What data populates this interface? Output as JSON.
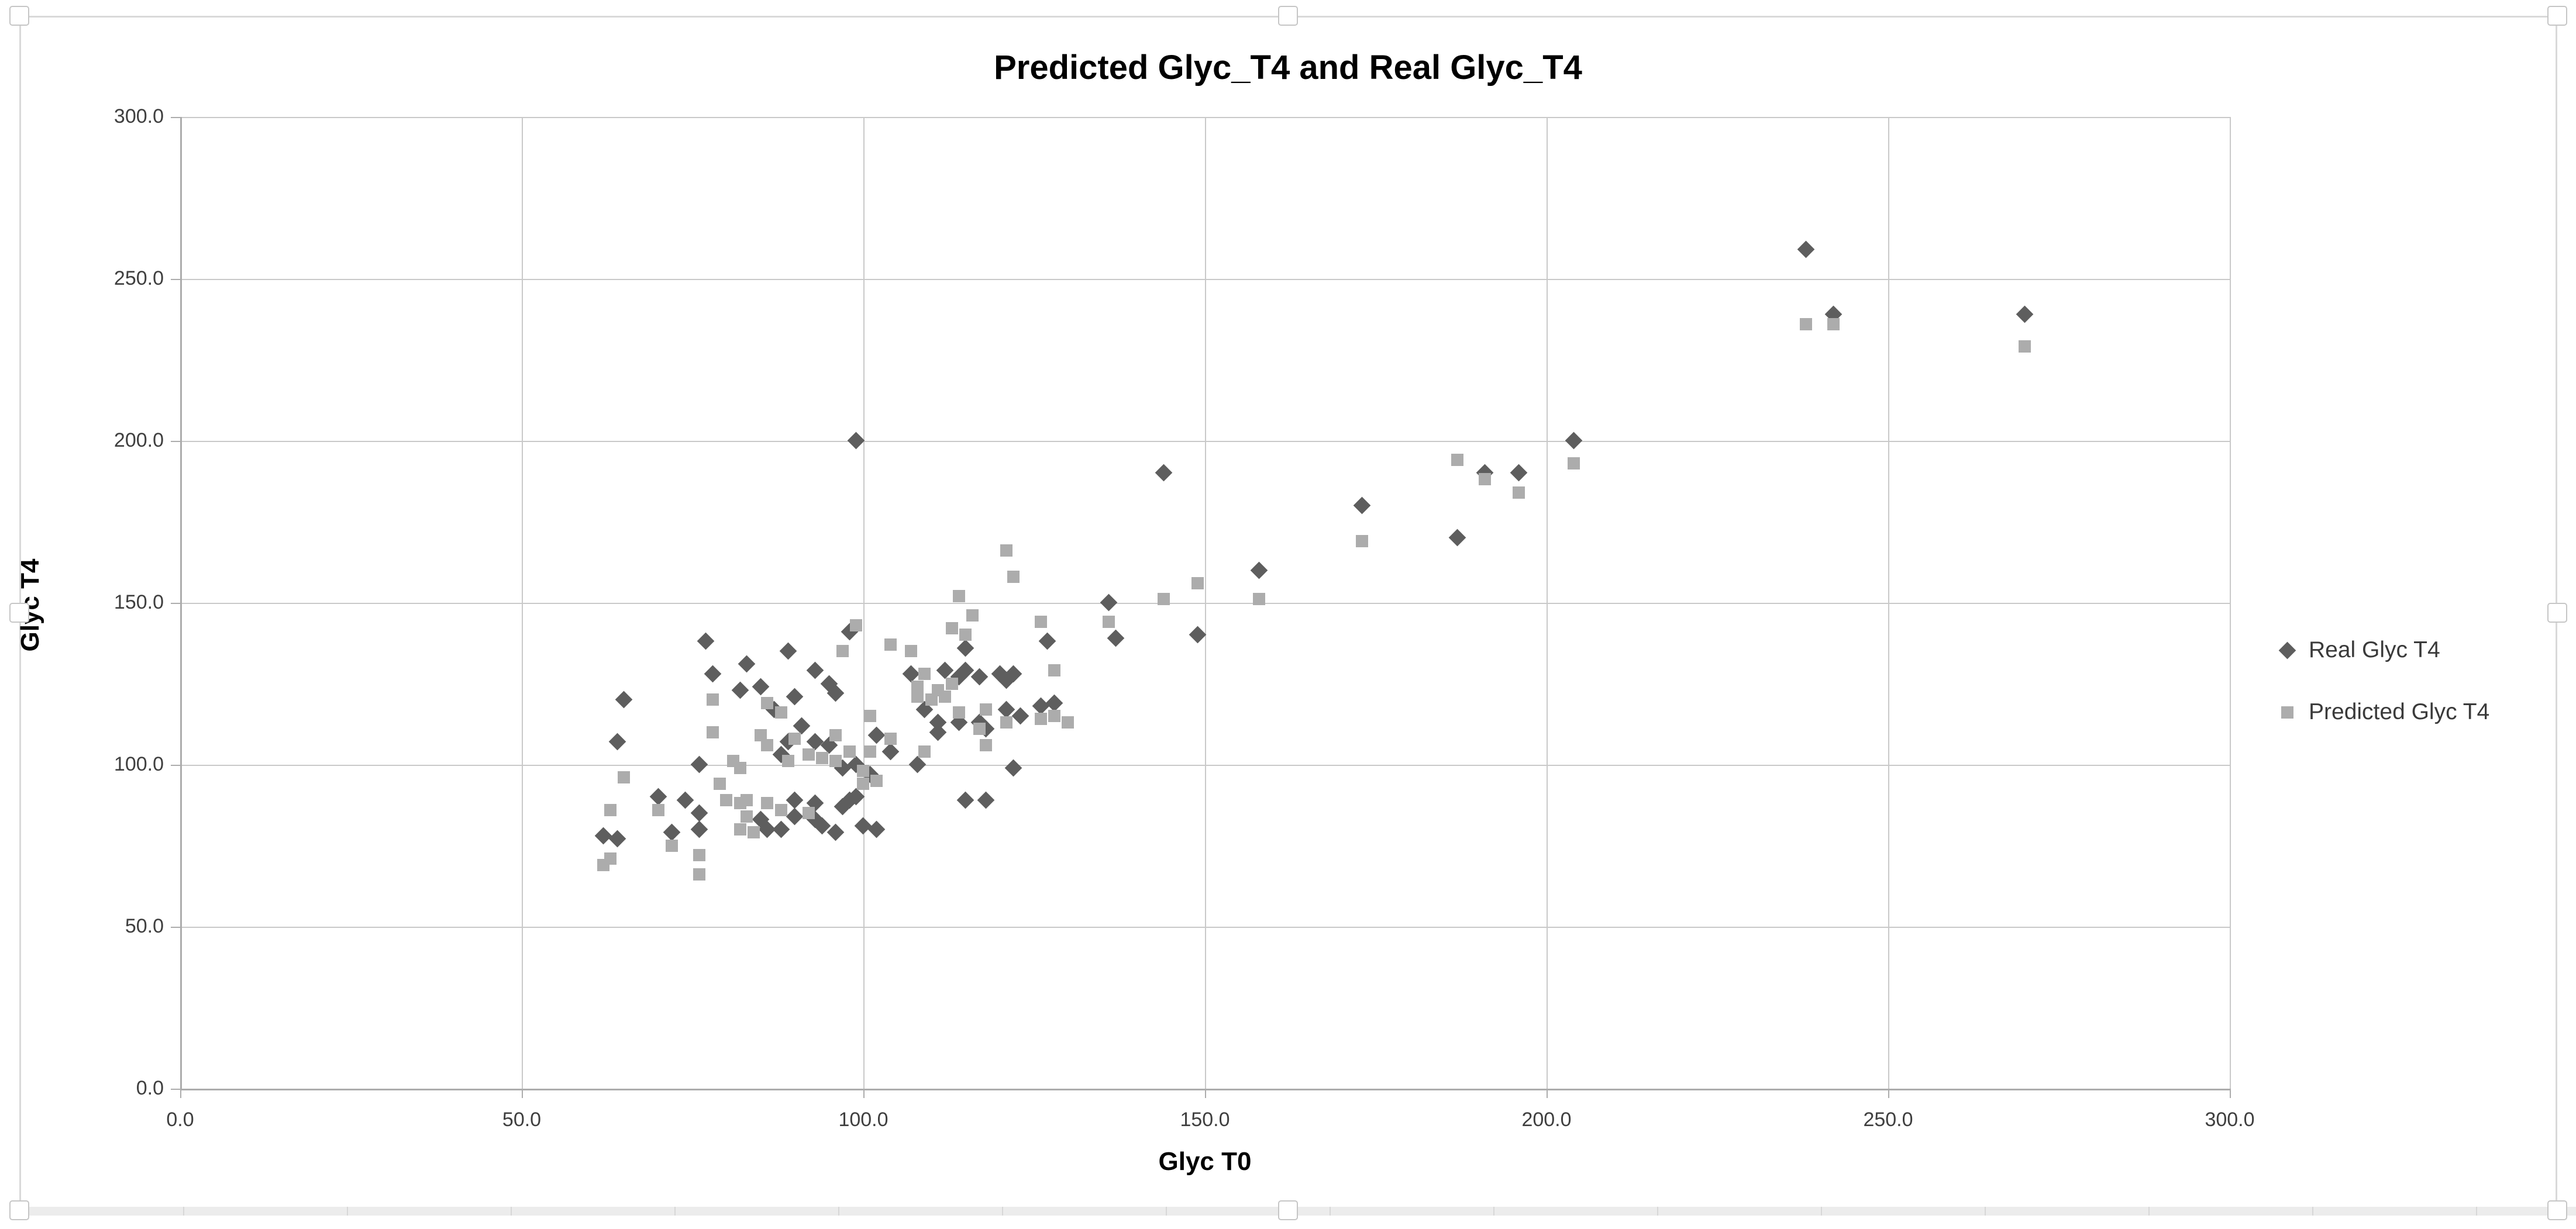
{
  "title": "Predicted Glyc_T4 and Real Glyc_T4",
  "axes": {
    "x": {
      "title": "Glyc T0",
      "tick_values": [
        0,
        50,
        100,
        150,
        200,
        250,
        300
      ],
      "tick_labels": [
        "0.0",
        "50.0",
        "100.0",
        "150.0",
        "200.0",
        "250.0",
        "300.0"
      ],
      "min": 0,
      "max": 300
    },
    "y": {
      "title": "Glyc T4",
      "tick_values": [
        0,
        50,
        100,
        150,
        200,
        250,
        300
      ],
      "tick_labels": [
        "0.0",
        "50.0",
        "100.0",
        "150.0",
        "200.0",
        "250.0",
        "300.0"
      ],
      "min": 0,
      "max": 300
    }
  },
  "legend": {
    "items": [
      {
        "label": "Real Glyc T4",
        "marker": "diamond",
        "color": "#5E5E5E"
      },
      {
        "label": "Predicted Glyc T4",
        "marker": "square",
        "color": "#ACACAC"
      }
    ]
  },
  "colors": {
    "gridline": "#C9C9C9",
    "axis": "#ACACAC",
    "real_series": "#5E5E5E",
    "predicted_series": "#ACACAC",
    "title_text": "#000000",
    "tick_text": "#3F3F3F"
  },
  "chart_data": {
    "type": "scatter",
    "title": "Predicted Glyc_T4 and Real Glyc_T4",
    "xlabel": "Glyc T0",
    "ylabel": "Glyc T4",
    "xlim": [
      0,
      300
    ],
    "ylim": [
      0,
      300
    ],
    "grid": true,
    "legend_position": "right",
    "series": [
      {
        "name": "Real Glyc T4",
        "marker": "diamond",
        "color": "#5E5E5E",
        "points": [
          [
            62,
            78
          ],
          [
            64,
            77
          ],
          [
            64,
            107
          ],
          [
            65,
            120
          ],
          [
            70,
            90
          ],
          [
            72,
            79
          ],
          [
            74,
            89
          ],
          [
            76,
            80
          ],
          [
            76,
            85
          ],
          [
            76,
            100
          ],
          [
            77,
            138
          ],
          [
            78,
            128
          ],
          [
            82,
            123
          ],
          [
            83,
            131
          ],
          [
            85,
            83
          ],
          [
            85,
            124
          ],
          [
            86,
            80
          ],
          [
            87,
            117
          ],
          [
            88,
            80
          ],
          [
            88,
            103
          ],
          [
            89,
            107
          ],
          [
            89,
            135
          ],
          [
            90,
            84
          ],
          [
            90,
            89
          ],
          [
            90,
            121
          ],
          [
            91,
            112
          ],
          [
            93,
            83
          ],
          [
            93,
            88
          ],
          [
            93,
            107
          ],
          [
            93,
            129
          ],
          [
            94,
            81
          ],
          [
            95,
            106
          ],
          [
            95,
            125
          ],
          [
            96,
            79
          ],
          [
            96,
            122
          ],
          [
            97,
            87
          ],
          [
            97,
            99
          ],
          [
            98,
            89
          ],
          [
            98,
            141
          ],
          [
            99,
            90
          ],
          [
            99,
            100
          ],
          [
            99,
            200
          ],
          [
            100,
            81
          ],
          [
            101,
            97
          ],
          [
            102,
            80
          ],
          [
            102,
            109
          ],
          [
            104,
            104
          ],
          [
            107,
            128
          ],
          [
            108,
            100
          ],
          [
            109,
            117
          ],
          [
            111,
            110
          ],
          [
            111,
            113
          ],
          [
            112,
            129
          ],
          [
            114,
            113
          ],
          [
            114,
            127
          ],
          [
            115,
            89
          ],
          [
            115,
            129
          ],
          [
            115,
            136
          ],
          [
            117,
            113
          ],
          [
            117,
            127
          ],
          [
            118,
            89
          ],
          [
            118,
            111
          ],
          [
            120,
            128
          ],
          [
            121,
            117
          ],
          [
            121,
            126
          ],
          [
            122,
            99
          ],
          [
            122,
            128
          ],
          [
            123,
            115
          ],
          [
            126,
            118
          ],
          [
            127,
            138
          ],
          [
            128,
            119
          ],
          [
            136,
            150
          ],
          [
            137,
            139
          ],
          [
            144,
            190
          ],
          [
            149,
            140
          ],
          [
            158,
            160
          ],
          [
            173,
            180
          ],
          [
            187,
            170
          ],
          [
            191,
            190
          ],
          [
            196,
            190
          ],
          [
            204,
            200
          ],
          [
            238,
            259
          ],
          [
            242,
            239
          ],
          [
            270,
            239
          ]
        ]
      },
      {
        "name": "Predicted Glyc T4",
        "marker": "square",
        "color": "#ACACAC",
        "points": [
          [
            62,
            69
          ],
          [
            63,
            71
          ],
          [
            63,
            86
          ],
          [
            65,
            96
          ],
          [
            70,
            86
          ],
          [
            72,
            75
          ],
          [
            76,
            66
          ],
          [
            76,
            72
          ],
          [
            78,
            110
          ],
          [
            78,
            120
          ],
          [
            79,
            94
          ],
          [
            80,
            89
          ],
          [
            81,
            101
          ],
          [
            82,
            80
          ],
          [
            82,
            88
          ],
          [
            82,
            99
          ],
          [
            83,
            84
          ],
          [
            83,
            89
          ],
          [
            84,
            79
          ],
          [
            85,
            109
          ],
          [
            86,
            88
          ],
          [
            86,
            106
          ],
          [
            86,
            119
          ],
          [
            88,
            86
          ],
          [
            88,
            116
          ],
          [
            89,
            101
          ],
          [
            90,
            108
          ],
          [
            92,
            85
          ],
          [
            92,
            103
          ],
          [
            94,
            102
          ],
          [
            96,
            101
          ],
          [
            96,
            109
          ],
          [
            97,
            135
          ],
          [
            98,
            104
          ],
          [
            99,
            143
          ],
          [
            100,
            94
          ],
          [
            100,
            98
          ],
          [
            101,
            104
          ],
          [
            101,
            115
          ],
          [
            102,
            95
          ],
          [
            104,
            108
          ],
          [
            104,
            137
          ],
          [
            107,
            135
          ],
          [
            108,
            121
          ],
          [
            108,
            124
          ],
          [
            109,
            104
          ],
          [
            109,
            128
          ],
          [
            110,
            120
          ],
          [
            111,
            123
          ],
          [
            112,
            121
          ],
          [
            113,
            125
          ],
          [
            113,
            142
          ],
          [
            114,
            116
          ],
          [
            114,
            152
          ],
          [
            115,
            140
          ],
          [
            116,
            146
          ],
          [
            117,
            111
          ],
          [
            118,
            106
          ],
          [
            118,
            117
          ],
          [
            121,
            113
          ],
          [
            121,
            166
          ],
          [
            122,
            158
          ],
          [
            126,
            114
          ],
          [
            126,
            144
          ],
          [
            128,
            115
          ],
          [
            128,
            129
          ],
          [
            130,
            113
          ],
          [
            136,
            144
          ],
          [
            144,
            151
          ],
          [
            149,
            156
          ],
          [
            158,
            151
          ],
          [
            173,
            169
          ],
          [
            187,
            194
          ],
          [
            191,
            188
          ],
          [
            196,
            184
          ],
          [
            204,
            193
          ],
          [
            238,
            236
          ],
          [
            242,
            236
          ],
          [
            270,
            229
          ]
        ]
      }
    ]
  }
}
